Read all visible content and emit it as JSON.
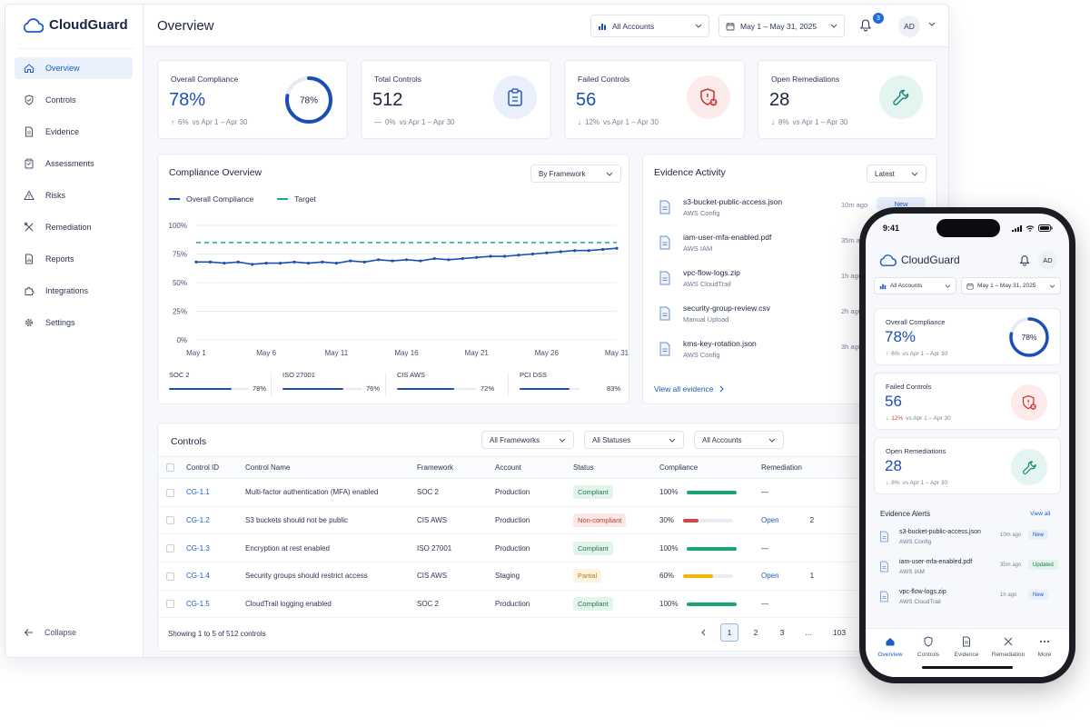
{
  "app": {
    "name": "CloudGuard"
  },
  "sidebar": {
    "items": [
      {
        "label": "Overview",
        "icon": "home-icon"
      },
      {
        "label": "Controls",
        "icon": "shield-icon"
      },
      {
        "label": "Evidence",
        "icon": "document-icon"
      },
      {
        "label": "Assessments",
        "icon": "clipboard-icon"
      },
      {
        "label": "Risks",
        "icon": "warning-icon"
      },
      {
        "label": "Remediation",
        "icon": "tools-icon"
      },
      {
        "label": "Reports",
        "icon": "report-icon"
      },
      {
        "label": "Integrations",
        "icon": "puzzle-icon"
      },
      {
        "label": "Settings",
        "icon": "gear-icon"
      }
    ],
    "collapse_label": "Collapse"
  },
  "header": {
    "title": "Overview",
    "accounts": "All Accounts",
    "date_range": "May 1 – May 31, 2025",
    "notifications": "3",
    "avatar": "AD"
  },
  "kpis": [
    {
      "label": "Overall Compliance",
      "value": "78%",
      "delta": "6%",
      "delta_dir": "up",
      "compare": "vs Apr 1 – Apr 30",
      "ring": "78%",
      "ring_fraction": 0.78
    },
    {
      "label": "Total Controls",
      "value": "512",
      "delta": "0%",
      "delta_dir": "flat",
      "compare": "vs Apr 1 – Apr 30"
    },
    {
      "label": "Failed Controls",
      "value": "56",
      "delta": "12%",
      "delta_dir": "down",
      "compare": "vs Apr 1 – Apr 30"
    },
    {
      "label": "Open Remediations",
      "value": "28",
      "delta": "8%",
      "delta_dir": "down",
      "compare": "vs Apr 1 – Apr 30"
    }
  ],
  "compliance_overview": {
    "title": "Compliance Overview",
    "dropdown": "By Framework",
    "legend": [
      "Overall Compliance",
      "Target"
    ]
  },
  "chart_data": {
    "type": "line",
    "x_ticks": [
      "May 1",
      "May 6",
      "May 11",
      "May 16",
      "May 21",
      "May 26",
      "May 31"
    ],
    "y_ticks": [
      "100%",
      "75%",
      "50%",
      "25%",
      "0%"
    ],
    "ylim": [
      0,
      100
    ],
    "x": [
      "May 1",
      "May 2",
      "May 3",
      "May 4",
      "May 5",
      "May 6",
      "May 7",
      "May 8",
      "May 9",
      "May 10",
      "May 11",
      "May 12",
      "May 13",
      "May 14",
      "May 15",
      "May 16",
      "May 17",
      "May 18",
      "May 19",
      "May 20",
      "May 21",
      "May 22",
      "May 23",
      "May 24",
      "May 25",
      "May 26",
      "May 27",
      "May 28",
      "May 29",
      "May 30",
      "May 31"
    ],
    "series": [
      {
        "name": "Overall Compliance",
        "color": "#1c4fb5",
        "values": [
          68,
          68,
          67,
          68,
          66,
          67,
          67,
          68,
          67,
          68,
          67,
          69,
          68,
          70,
          69,
          70,
          69,
          71,
          70,
          71,
          72,
          73,
          73,
          74,
          75,
          76,
          77,
          78,
          78,
          79,
          80
        ]
      },
      {
        "name": "Target",
        "color": "#1aa7a1",
        "dashed": true,
        "values": [
          85,
          85,
          85,
          85,
          85,
          85,
          85,
          85,
          85,
          85,
          85,
          85,
          85,
          85,
          85,
          85,
          85,
          85,
          85,
          85,
          85,
          85,
          85,
          85,
          85,
          85,
          85,
          85,
          85,
          85,
          85
        ]
      }
    ],
    "grid": true,
    "legend": "top-left"
  },
  "frameworks": [
    {
      "name": "SOC 2",
      "pct": "78%",
      "value": 78
    },
    {
      "name": "ISO 27001",
      "pct": "76%",
      "value": 76
    },
    {
      "name": "CIS AWS",
      "pct": "72%",
      "value": 72
    },
    {
      "name": "PCI DSS",
      "pct": "83%",
      "value": 83
    }
  ],
  "evidence": {
    "title": "Evidence Activity",
    "dropdown": "Latest",
    "items": [
      {
        "name": "s3-bucket-public-access.json",
        "source": "AWS Config",
        "time": "10m ago",
        "tag": "New"
      },
      {
        "name": "iam-user-mfa-enabled.pdf",
        "source": "AWS IAM",
        "time": "35m ago"
      },
      {
        "name": "vpc-flow-logs.zip",
        "source": "AWS CloudTrail",
        "time": "1h ago"
      },
      {
        "name": "security-group-review.csv",
        "source": "Manual Upload",
        "time": "2h ago"
      },
      {
        "name": "kms-key-rotation.json",
        "source": "AWS Config",
        "time": "3h ago"
      }
    ],
    "view_all": "View all evidence"
  },
  "controls": {
    "title": "Controls",
    "filters": [
      "All Frameworks",
      "All Statuses",
      "All Accounts"
    ],
    "columns": [
      "Control ID",
      "Control Name",
      "Framework",
      "Account",
      "Status",
      "Compliance",
      "Remediation"
    ],
    "rows": [
      {
        "id": "CG-1.1",
        "name": "Multi-factor authentication (MFA) enabled",
        "framework": "SOC 2",
        "account": "Production",
        "status": "Compliant",
        "status_kind": "ok",
        "compliance": "100%",
        "value": 100,
        "remediation": "—",
        "count": ""
      },
      {
        "id": "CG-1.2",
        "name": "S3 buckets should not be public",
        "framework": "CIS AWS",
        "account": "Production",
        "status": "Non-compliant",
        "status_kind": "bad",
        "compliance": "30%",
        "value": 30,
        "remediation": "Open",
        "count": "2"
      },
      {
        "id": "CG-1.3",
        "name": "Encryption at rest enabled",
        "framework": "ISO 27001",
        "account": "Production",
        "status": "Compliant",
        "status_kind": "ok",
        "compliance": "100%",
        "value": 100,
        "remediation": "—",
        "count": ""
      },
      {
        "id": "CG-1.4",
        "name": "Security groups should restrict access",
        "framework": "CIS AWS",
        "account": "Staging",
        "status": "Partial",
        "status_kind": "part",
        "compliance": "60%",
        "value": 60,
        "remediation": "Open",
        "count": "1"
      },
      {
        "id": "CG-1.5",
        "name": "CloudTrail logging enabled",
        "framework": "SOC 2",
        "account": "Production",
        "status": "Compliant",
        "status_kind": "ok",
        "compliance": "100%",
        "value": 100,
        "remediation": "—",
        "count": ""
      }
    ],
    "showing": "Showing 1 to 5 of 512 controls",
    "pages": [
      "1",
      "2",
      "3",
      "...",
      "103"
    ]
  },
  "mobile": {
    "time": "9:41",
    "accounts": "All Accounts",
    "date_range": "May 1 – May 31, 2025",
    "avatar": "AD",
    "kpis": [
      {
        "label": "Overall Compliance",
        "value": "78%",
        "delta": "6%",
        "compare": "vs Apr 1 – Apr 30",
        "ring": "78%"
      },
      {
        "label": "Failed Controls",
        "value": "56",
        "delta": "12%",
        "compare": "vs Apr 1 – Apr 30"
      },
      {
        "label": "Open Remediations",
        "value": "28",
        "delta": "8%",
        "compare": "vs Apr 1 – Apr 30"
      }
    ],
    "alerts_title": "Evidence Alerts",
    "alerts_view_all": "View all",
    "alerts": [
      {
        "name": "s3-bucket-public-access.json",
        "source": "AWS Config",
        "time": "10m ago",
        "tag": "New"
      },
      {
        "name": "iam-user-mfa-enabled.pdf",
        "source": "AWS IAM",
        "time": "35m ago",
        "tag": "Updated"
      },
      {
        "name": "vpc-flow-logs.zip",
        "source": "AWS CloudTrail",
        "time": "1h ago",
        "tag": "New"
      }
    ],
    "tabs": [
      "Overview",
      "Controls",
      "Evidence",
      "Remediation",
      "More"
    ]
  },
  "colors": {
    "accent": "#1c4fb5",
    "target": "#1aa7a1",
    "success": "#1aa37a",
    "danger": "#d64545",
    "warning": "#f2b705"
  }
}
